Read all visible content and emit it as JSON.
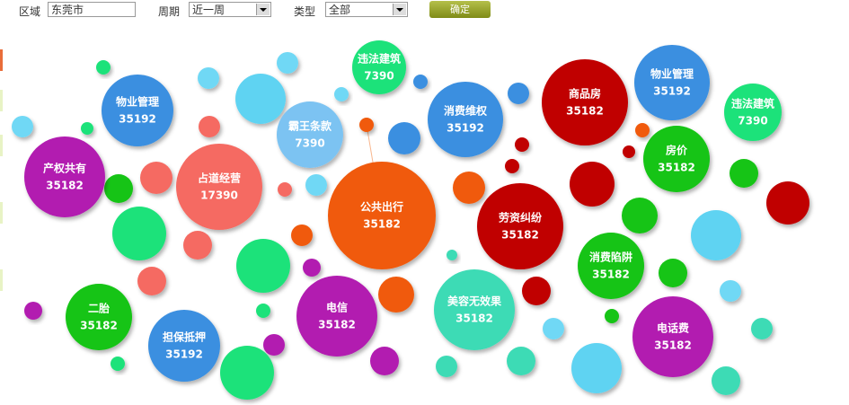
{
  "filters": {
    "region": {
      "label": "区域",
      "value": "东莞市"
    },
    "period": {
      "label": "周期",
      "value": "近一周"
    },
    "type": {
      "label": "类型",
      "value": "全部"
    },
    "button": "确定"
  },
  "bubbles": [
    {
      "label": "违法建筑",
      "value": 7390,
      "color": "#1de27a"
    },
    {
      "label": "物业管理",
      "value": 35192,
      "color": "#3a8fe0"
    },
    {
      "label": "霸王条款",
      "value": 7390,
      "color": "#7cc3f2"
    },
    {
      "label": "消费维权",
      "value": 35192,
      "color": "#3a8fe0"
    },
    {
      "label": "商品房",
      "value": 35182,
      "color": "#c00000"
    },
    {
      "label": "物业管理",
      "value": 35192,
      "color": "#3a8fe0"
    },
    {
      "label": "违法建筑",
      "value": 7390,
      "color": "#1de27a"
    },
    {
      "label": "产权共有",
      "value": 35182,
      "color": "#b21eb0"
    },
    {
      "label": "占道经营",
      "value": 17390,
      "color": "#f56b62"
    },
    {
      "label": "公共出行",
      "value": 35182,
      "color": "#f05a0a"
    },
    {
      "label": "劳资纠纷",
      "value": 35182,
      "color": "#c00000"
    },
    {
      "label": "房价",
      "value": 35182,
      "color": "#13c413"
    },
    {
      "label": "消费陷阱",
      "value": 35182,
      "color": "#13c413"
    },
    {
      "label": "二胎",
      "value": 35182,
      "color": "#13c413"
    },
    {
      "label": "电信",
      "value": 35182,
      "color": "#b21eb0"
    },
    {
      "label": "美容无效果",
      "value": 35182,
      "color": "#3ddbb5"
    },
    {
      "label": "担保抵押",
      "value": 35192,
      "color": "#3a8fe0"
    },
    {
      "label": "电话费",
      "value": 35182,
      "color": "#b21eb0"
    }
  ]
}
